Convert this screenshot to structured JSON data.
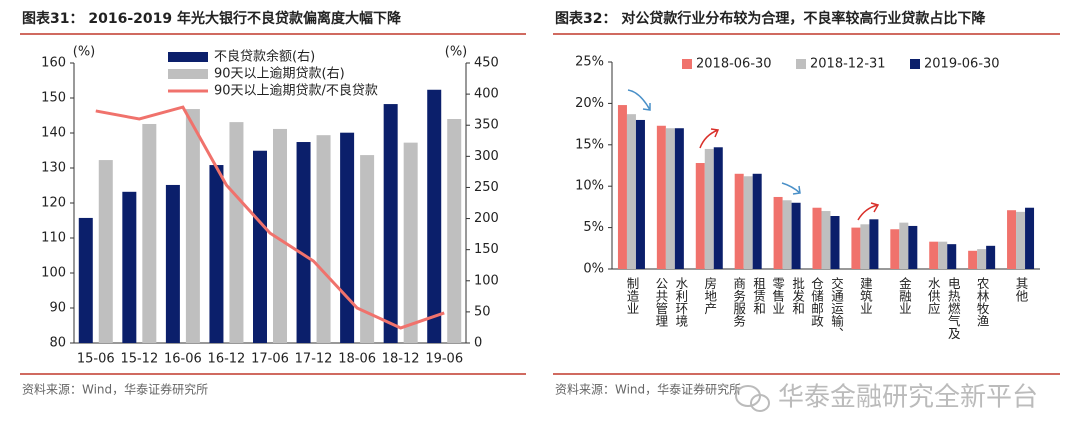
{
  "chart_data": [
    {
      "type": "bar",
      "title": "图表31：  2016-2019 年光大银行不良贷款偏离度大幅下降",
      "ylabel": "(%)",
      "y2label": "(%)",
      "categories": [
        "15-06",
        "15-12",
        "16-06",
        "16-12",
        "17-06",
        "17-12",
        "18-06",
        "18-12",
        "19-06"
      ],
      "series": [
        {
          "name": "不良贷款余额(右)",
          "color": "#0b1f6b",
          "type": "bar",
          "axis": "y2",
          "values": [
            201,
            243,
            254,
            286,
            309,
            323,
            338,
            384,
            407
          ]
        },
        {
          "name": "90天以上逾期贷款(右)",
          "color": "#bfbfbf",
          "type": "bar",
          "axis": "y2",
          "values": [
            294,
            352,
            376,
            355,
            344,
            334,
            302,
            322,
            360
          ]
        },
        {
          "name": "90天以上逾期贷款/不良贷款",
          "color": "#f0726c",
          "type": "line",
          "values": [
            146.3,
            144,
            147.4,
            125.1,
            111.4,
            103.4,
            90,
            84.3,
            88.6
          ]
        }
      ],
      "ylim": [
        80,
        160
      ],
      "yticks": [
        80,
        90,
        100,
        110,
        120,
        130,
        140,
        150,
        160
      ],
      "y2lim": [
        0,
        450
      ],
      "y2ticks": [
        0,
        50,
        100,
        150,
        200,
        250,
        300,
        350,
        400,
        450
      ],
      "source": "资料来源：Wind，华泰证券研究所"
    },
    {
      "type": "bar",
      "title": "图表32：  对公贷款行业分布较为合理，不良率较高行业贷款占比下降",
      "categories": [
        "制造业",
        "水利环境\n公共管理",
        "房地产",
        "租赁和\n商务服务",
        "批发和\n零售业",
        "交通运输、\n仓储邮政",
        "建筑业",
        "金融业",
        "电热燃气及\n水供应",
        "农林牧渔",
        "其他"
      ],
      "series": [
        {
          "name": "2018-06-30",
          "color": "#f0726c",
          "values": [
            19.8,
            17.3,
            12.8,
            11.5,
            8.7,
            7.4,
            5.0,
            4.8,
            3.3,
            2.2,
            7.1
          ]
        },
        {
          "name": "2018-12-31",
          "color": "#bfbfbf",
          "values": [
            18.7,
            17.0,
            14.5,
            11.2,
            8.3,
            7.0,
            5.4,
            5.6,
            3.3,
            2.4,
            6.9
          ]
        },
        {
          "name": "2019-06-30",
          "color": "#0b1f6b",
          "values": [
            18.0,
            17.0,
            14.7,
            11.5,
            8.0,
            6.4,
            6.0,
            5.2,
            3.0,
            2.8,
            7.4
          ]
        }
      ],
      "ylim": [
        0,
        25
      ],
      "yticks": [
        {
          "value": 0,
          "label": "0%"
        },
        {
          "value": 5,
          "label": "5%"
        },
        {
          "value": 10,
          "label": "10%"
        },
        {
          "value": 15,
          "label": "15%"
        },
        {
          "value": 20,
          "label": "20%"
        },
        {
          "value": 25,
          "label": "25%"
        }
      ],
      "source": "资料来源：Wind，华泰证券研究所"
    }
  ],
  "watermark": "华泰金融研究全新平台"
}
